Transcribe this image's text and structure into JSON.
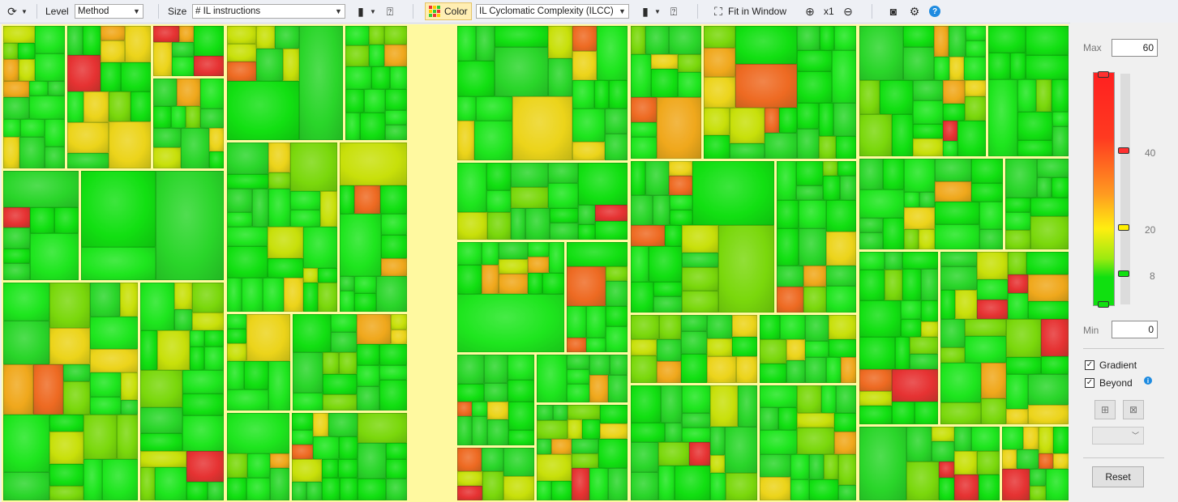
{
  "toolbar": {
    "refresh_icon": "refresh-icon",
    "level_label": "Level",
    "level_value": "Method",
    "size_label": "Size",
    "size_value": "# IL instructions",
    "color_label": "Color",
    "color_metric": "IL Cyclomatic Complexity (ILCC)",
    "fit_label": "Fit in Window",
    "zoom_label": "x1"
  },
  "panel": {
    "max_label": "Max",
    "max_value": "60",
    "min_label": "Min",
    "min_value": "0",
    "ticks": [
      "40",
      "20",
      "8"
    ],
    "gradient_label": "Gradient",
    "beyond_label": "Beyond",
    "reset_label": "Reset",
    "gradient_checked": true,
    "beyond_checked": true,
    "colors": {
      "high": "#ff2a2a",
      "mid": "#ffee00",
      "low": "#00e000"
    }
  },
  "treemap": {
    "border_color": "#fff9a0",
    "cell_colors": [
      "#12e012",
      "#1ee61e",
      "#2ad62a",
      "#7ad80c",
      "#c8e00a",
      "#ecd41a",
      "#f0a81c",
      "#ee6a22",
      "#e63232"
    ]
  }
}
